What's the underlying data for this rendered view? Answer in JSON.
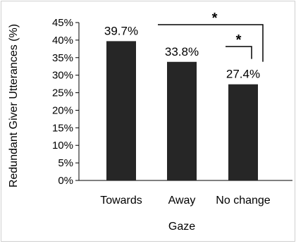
{
  "chart_data": {
    "type": "bar",
    "categories": [
      "Towards",
      "Away",
      "No change"
    ],
    "values": [
      39.7,
      33.8,
      27.4
    ],
    "data_labels": [
      "39.7%",
      "33.8%",
      "27.4%"
    ],
    "xlabel": "Gaze",
    "ylabel": "Redundant  Giver  Utterances (%)",
    "ylim": [
      0,
      45
    ],
    "yticks": [
      0,
      5,
      10,
      15,
      20,
      25,
      30,
      35,
      40,
      45
    ],
    "ytick_labels": [
      "0%",
      "5%",
      "10%",
      "15%",
      "20%",
      "25%",
      "30%",
      "35%",
      "40%",
      "45%"
    ],
    "grid": false,
    "legend": "none",
    "bar_color": "#262626",
    "significance": [
      {
        "from": "Towards",
        "to": "No change",
        "label": "*"
      },
      {
        "from": "Away",
        "to": "No change",
        "label": "*"
      }
    ]
  }
}
